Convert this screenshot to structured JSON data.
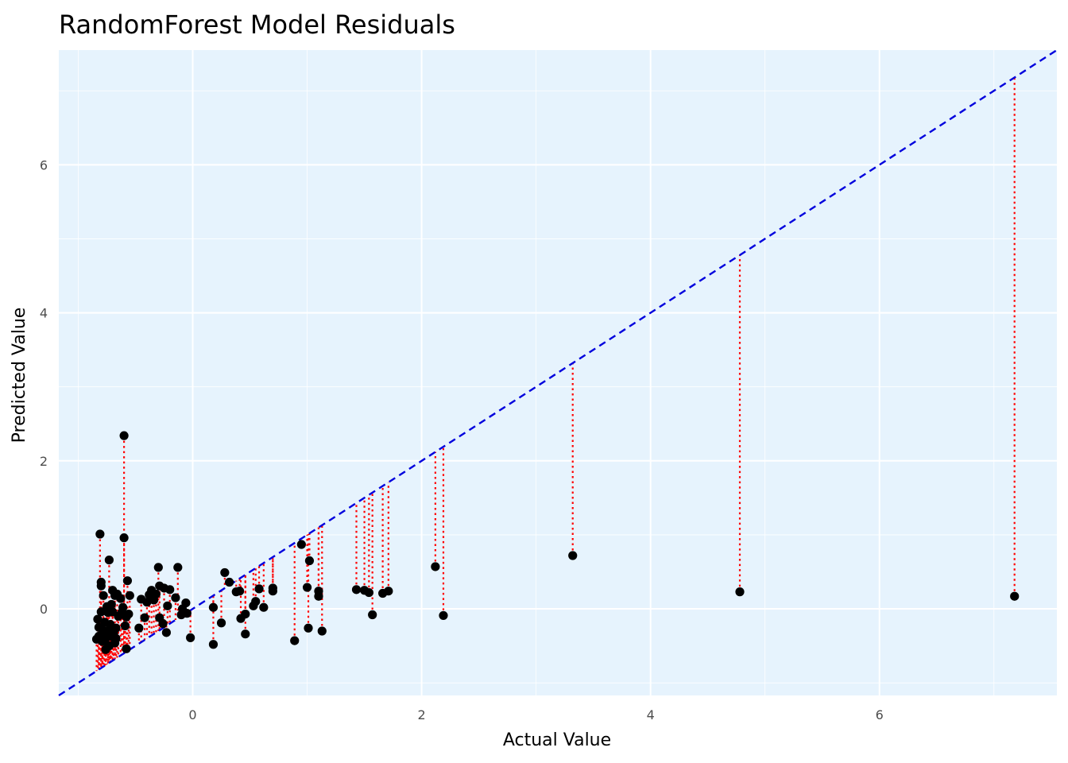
{
  "chart_data": {
    "type": "scatter",
    "title": "RandomForest Model Residuals",
    "xlabel": "Actual Value",
    "ylabel": "Predicted Value",
    "xlim": [
      -1.17,
      7.55
    ],
    "ylim": [
      -1.17,
      7.55
    ],
    "x_ticks": [
      0,
      2,
      4,
      6
    ],
    "y_ticks": [
      0,
      2,
      4,
      6
    ],
    "grid": true,
    "legend": "none",
    "colors": {
      "panel_background": "#e6f3fd",
      "grid": "#ffffff",
      "points": "#000000",
      "residual_lines": "#ff0000",
      "reference_line": "#0000dd"
    },
    "reference_line": {
      "label": "y = x",
      "style": "dashed"
    },
    "residual_segments": "dotted vertical lines from each point to the y = x line",
    "points": [
      {
        "x": 7.18,
        "y": 0.17
      },
      {
        "x": 4.78,
        "y": 0.23
      },
      {
        "x": 3.32,
        "y": 0.72
      },
      {
        "x": 2.12,
        "y": 0.57
      },
      {
        "x": 2.19,
        "y": -0.09
      },
      {
        "x": 1.71,
        "y": 0.24
      },
      {
        "x": 1.66,
        "y": 0.21
      },
      {
        "x": 1.57,
        "y": -0.08
      },
      {
        "x": 1.54,
        "y": 0.22
      },
      {
        "x": 1.5,
        "y": 0.25
      },
      {
        "x": 1.43,
        "y": 0.26
      },
      {
        "x": 1.13,
        "y": -0.3
      },
      {
        "x": 1.1,
        "y": 0.17
      },
      {
        "x": 1.1,
        "y": 0.24
      },
      {
        "x": 1.02,
        "y": 0.65
      },
      {
        "x": 1.01,
        "y": -0.26
      },
      {
        "x": 1.0,
        "y": 0.29
      },
      {
        "x": 0.95,
        "y": 0.87
      },
      {
        "x": 0.89,
        "y": -0.43
      },
      {
        "x": 0.7,
        "y": 0.24
      },
      {
        "x": 0.7,
        "y": 0.28
      },
      {
        "x": 0.62,
        "y": 0.02
      },
      {
        "x": 0.58,
        "y": 0.27
      },
      {
        "x": 0.55,
        "y": 0.1
      },
      {
        "x": 0.53,
        "y": 0.04
      },
      {
        "x": 0.46,
        "y": -0.07
      },
      {
        "x": 0.46,
        "y": -0.34
      },
      {
        "x": 0.42,
        "y": -0.13
      },
      {
        "x": 0.41,
        "y": 0.24
      },
      {
        "x": 0.38,
        "y": 0.23
      },
      {
        "x": 0.32,
        "y": 0.36
      },
      {
        "x": 0.28,
        "y": 0.49
      },
      {
        "x": 0.25,
        "y": -0.19
      },
      {
        "x": 0.18,
        "y": 0.02
      },
      {
        "x": 0.18,
        "y": -0.48
      },
      {
        "x": -0.02,
        "y": -0.39
      },
      {
        "x": -0.05,
        "y": -0.06
      },
      {
        "x": -0.06,
        "y": 0.08
      },
      {
        "x": -0.09,
        "y": 0.0
      },
      {
        "x": -0.1,
        "y": -0.08
      },
      {
        "x": -0.13,
        "y": 0.56
      },
      {
        "x": -0.15,
        "y": 0.15
      },
      {
        "x": -0.2,
        "y": 0.26
      },
      {
        "x": -0.22,
        "y": 0.04
      },
      {
        "x": -0.23,
        "y": -0.32
      },
      {
        "x": -0.25,
        "y": 0.28
      },
      {
        "x": -0.26,
        "y": -0.2
      },
      {
        "x": -0.29,
        "y": -0.12
      },
      {
        "x": -0.29,
        "y": 0.31
      },
      {
        "x": -0.3,
        "y": 0.56
      },
      {
        "x": -0.32,
        "y": 0.2
      },
      {
        "x": -0.34,
        "y": 0.12
      },
      {
        "x": -0.36,
        "y": 0.25
      },
      {
        "x": -0.38,
        "y": 0.19
      },
      {
        "x": -0.4,
        "y": 0.09
      },
      {
        "x": -0.42,
        "y": -0.12
      },
      {
        "x": -0.45,
        "y": 0.13
      },
      {
        "x": -0.47,
        "y": -0.26
      },
      {
        "x": -0.55,
        "y": 0.18
      },
      {
        "x": -0.56,
        "y": -0.07
      },
      {
        "x": -0.57,
        "y": 0.38
      },
      {
        "x": -0.58,
        "y": -0.54
      },
      {
        "x": -0.58,
        "y": -0.11
      },
      {
        "x": -0.59,
        "y": -0.23
      },
      {
        "x": -0.6,
        "y": 0.96
      },
      {
        "x": -0.6,
        "y": 2.34
      },
      {
        "x": -0.61,
        "y": 0.02
      },
      {
        "x": -0.62,
        "y": -0.05
      },
      {
        "x": -0.63,
        "y": 0.14
      },
      {
        "x": -0.65,
        "y": -0.1
      },
      {
        "x": -0.66,
        "y": 0.2
      },
      {
        "x": -0.67,
        "y": -0.4
      },
      {
        "x": -0.67,
        "y": -0.26
      },
      {
        "x": -0.68,
        "y": -0.46
      },
      {
        "x": -0.68,
        "y": 0.18
      },
      {
        "x": -0.69,
        "y": -0.33
      },
      {
        "x": -0.7,
        "y": -0.04
      },
      {
        "x": -0.7,
        "y": 0.25
      },
      {
        "x": -0.71,
        "y": 0.06
      },
      {
        "x": -0.72,
        "y": -0.21
      },
      {
        "x": -0.72,
        "y": -0.37
      },
      {
        "x": -0.73,
        "y": -0.5
      },
      {
        "x": -0.73,
        "y": 0.66
      },
      {
        "x": -0.74,
        "y": -0.29
      },
      {
        "x": -0.74,
        "y": -0.05
      },
      {
        "x": -0.75,
        "y": 0.03
      },
      {
        "x": -0.76,
        "y": -0.4
      },
      {
        "x": -0.76,
        "y": -0.55
      },
      {
        "x": -0.77,
        "y": -0.18
      },
      {
        "x": -0.77,
        "y": -0.33
      },
      {
        "x": -0.78,
        "y": 0.18
      },
      {
        "x": -0.79,
        "y": -0.44
      },
      {
        "x": -0.79,
        "y": -0.28
      },
      {
        "x": -0.8,
        "y": 0.31
      },
      {
        "x": -0.8,
        "y": 0.36
      },
      {
        "x": -0.8,
        "y": -0.04
      },
      {
        "x": -0.81,
        "y": 1.01
      },
      {
        "x": -0.82,
        "y": -0.37
      },
      {
        "x": -0.82,
        "y": -0.25
      },
      {
        "x": -0.83,
        "y": -0.14
      },
      {
        "x": -0.84,
        "y": -0.41
      }
    ]
  }
}
